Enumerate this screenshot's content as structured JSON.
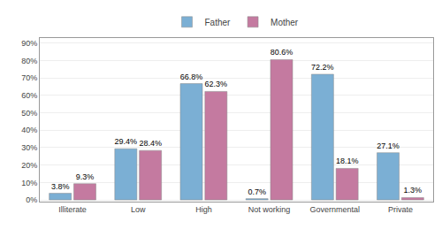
{
  "chart_data": {
    "type": "bar",
    "categories": [
      "Illiterate",
      "Low",
      "High",
      "Not working",
      "Governmental",
      "Private"
    ],
    "series": [
      {
        "name": "Father",
        "color": "#7BAFD4",
        "values": [
          3.8,
          29.4,
          66.8,
          0.7,
          72.2,
          27.1
        ],
        "value_labels": [
          "3.8%",
          "29.4%",
          "66.8%",
          "0.7%",
          "72.2%",
          "27.1%"
        ]
      },
      {
        "name": "Mother",
        "color": "#C47AA0",
        "values": [
          9.3,
          28.4,
          62.3,
          80.6,
          18.1,
          1.3
        ],
        "value_labels": [
          "9.3%",
          "28.4%",
          "62.3%",
          "80.6%",
          "18.1%",
          "1.3%"
        ]
      }
    ],
    "ylim": [
      -1,
      93
    ],
    "yticks": [
      {
        "value": 0,
        "label": "0%"
      },
      {
        "value": 10,
        "label": "10%"
      },
      {
        "value": 20,
        "label": "20%"
      },
      {
        "value": 30,
        "label": "30%"
      },
      {
        "value": 40,
        "label": "40%"
      },
      {
        "value": 50,
        "label": "50%"
      },
      {
        "value": 60,
        "label": "60%"
      },
      {
        "value": 70,
        "label": "70%"
      },
      {
        "value": 80,
        "label": "80%"
      },
      {
        "value": 90,
        "label": "90%"
      }
    ],
    "grid": true,
    "legend": "top",
    "data_labels": true
  }
}
